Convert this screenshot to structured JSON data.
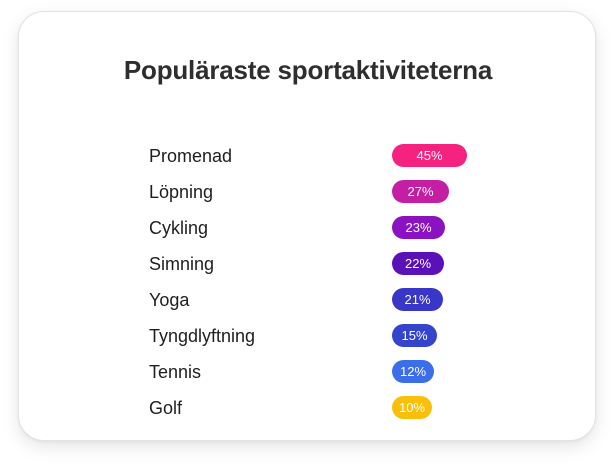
{
  "chart_data": {
    "type": "bar",
    "title": "Populäraste sportaktiviteterna",
    "categories": [
      "Promenad",
      "Löpning",
      "Cykling",
      "Simning",
      "Yoga",
      "Tyngdlyftning",
      "Tennis",
      "Golf"
    ],
    "values": [
      45,
      27,
      23,
      22,
      21,
      15,
      12,
      10
    ],
    "value_labels": [
      "45%",
      "27%",
      "23%",
      "22%",
      "21%",
      "15%",
      "12%",
      "10%"
    ],
    "colors": [
      "#f5237f",
      "#c41ea4",
      "#8a12c0",
      "#5a12b8",
      "#3a36c8",
      "#3444cc",
      "#3b6ee8",
      "#f8c00a"
    ],
    "orientation": "horizontal",
    "unit": "%",
    "grid": false,
    "legend": "none"
  }
}
